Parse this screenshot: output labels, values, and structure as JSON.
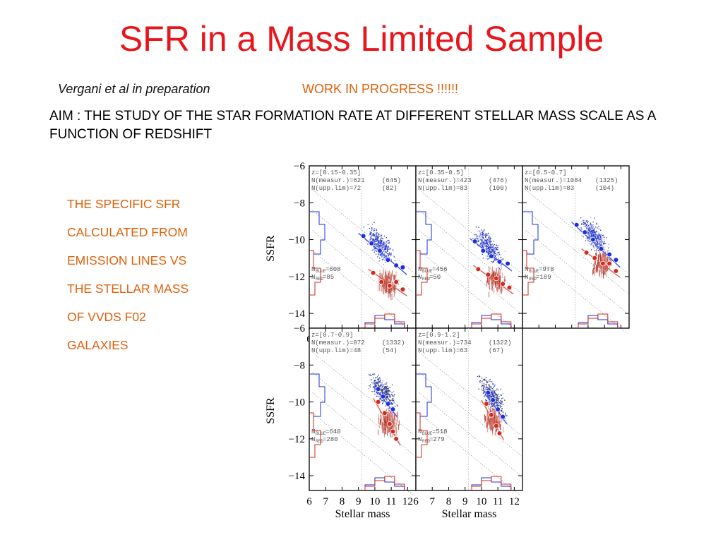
{
  "slide": {
    "title": "SFR in a Mass Limited Sample",
    "citation": "Vergani et al in preparation",
    "status": "WORK IN PROGRESS !!!!!!",
    "aim": "AIM : THE STUDY OF THE STAR FORMATION RATE AT DIFFERENT STELLAR MASS SCALE AS  A FUNCTION OF REDSHIFT",
    "description_lines": [
      "THE SPECIFIC SFR",
      "CALCULATED FROM",
      "EMISSION LINES VS",
      "THE STELLAR MASS",
      "OF VVDS F02",
      "GALAXIES"
    ]
  },
  "colors": {
    "title": "#e8161c",
    "highlight": "#e0610b",
    "blue": "#1a2fe0",
    "red": "#d42a1e"
  },
  "chart_data": [
    {
      "type": "scatter",
      "title": "z=[0.15-0.35]",
      "n_measured": "N(measur.)=621",
      "n_measured_total": "(645)",
      "n_upper_limits": "N(upp.lim)=72",
      "n_upper_limits_total": "(82)",
      "n_blue": "608",
      "n_red": "85",
      "xlabel": "",
      "ylabel": "SSFR",
      "xlim": [
        6,
        12.5
      ],
      "ylim": [
        -14.8,
        -6
      ],
      "xticks": [
        "6",
        "7",
        "8",
        "9",
        "10",
        "11",
        "12"
      ],
      "yticks": [
        "-6",
        "-8",
        "-10",
        "-12",
        "-14"
      ],
      "series": [
        {
          "name": "BLUE",
          "x": [
            9.3,
            9.8,
            10.3,
            10.8,
            11.3,
            11.7
          ],
          "y": [
            -9.8,
            -10.2,
            -10.6,
            -11.1,
            -11.4,
            -11.5
          ]
        },
        {
          "name": "RED",
          "x": [
            9.9,
            10.4,
            10.9,
            11.3,
            11.7
          ],
          "y": [
            -11.8,
            -12.3,
            -12.5,
            -12.3,
            -12.7
          ]
        }
      ]
    },
    {
      "type": "scatter",
      "title": "z=[0.35-0.5]",
      "n_measured": "N(measur.)=423",
      "n_measured_total": "(476)",
      "n_upper_limits": "N(upp.lim)=83",
      "n_upper_limits_total": "(100)",
      "n_blue": "456",
      "n_red": "50",
      "xlabel": "",
      "ylabel": "",
      "xlim": [
        6,
        12.5
      ],
      "ylim": [
        -14.8,
        -6
      ],
      "series": [
        {
          "name": "BLUE",
          "x": [
            9.6,
            10.1,
            10.6,
            11.1,
            11.6
          ],
          "y": [
            -10.1,
            -10.6,
            -10.9,
            -11.2,
            -11.3
          ]
        },
        {
          "name": "RED",
          "x": [
            9.8,
            10.4,
            10.9,
            11.3,
            11.7
          ],
          "y": [
            -11.6,
            -11.9,
            -12.1,
            -12.4,
            -12.6
          ]
        }
      ]
    },
    {
      "type": "scatter",
      "title": "z=[0.5-0.7]",
      "n_measured": "N(measur.)=1084",
      "n_measured_total": "(1325)",
      "n_upper_limits": "N(upp.lim)=83",
      "n_upper_limits_total": "(104)",
      "n_blue": "978",
      "n_red": "189",
      "xlabel": "",
      "ylabel": "",
      "xlim": [
        6,
        12.5
      ],
      "ylim": [
        -14.8,
        -6
      ],
      "series": [
        {
          "name": "BLUE",
          "x": [
            9.3,
            9.8,
            10.3,
            10.8,
            11.3,
            11.7
          ],
          "y": [
            -9.2,
            -9.6,
            -10.0,
            -10.5,
            -10.8,
            -11.1
          ]
        },
        {
          "name": "RED",
          "x": [
            9.9,
            10.4,
            10.9,
            11.3,
            11.7
          ],
          "y": [
            -10.7,
            -11.0,
            -11.3,
            -11.3,
            -11.7
          ]
        }
      ]
    },
    {
      "type": "scatter",
      "title": "z=[0.7-0.9]",
      "n_measured": "N(measur.)=872",
      "n_measured_total": "(1332)",
      "n_upper_limits": "N(upp.lim)=48",
      "n_upper_limits_total": "(54)",
      "n_blue": "640",
      "n_red": "280",
      "xlabel": "Stellar mass",
      "ylabel": "SSFR",
      "xlim": [
        6,
        12.5
      ],
      "ylim": [
        -14.8,
        -6
      ],
      "xticks": [
        "6",
        "7",
        "8",
        "9",
        "10",
        "11",
        "12"
      ],
      "yticks": [
        "-6",
        "-8",
        "-10",
        "-12",
        "-14"
      ],
      "series": [
        {
          "name": "BLUE",
          "x": [
            10.2,
            10.5,
            10.8,
            11.1
          ],
          "y": [
            -9.3,
            -9.7,
            -10.1,
            -10.4
          ]
        },
        {
          "name": "RED",
          "x": [
            10.2,
            10.6,
            10.9,
            11.1,
            11.3
          ],
          "y": [
            -10.0,
            -10.6,
            -11.2,
            -11.6,
            -12.0
          ]
        }
      ]
    },
    {
      "type": "scatter",
      "title": "z=[0.9-1.2]",
      "n_measured": "N(measur.)=734",
      "n_measured_total": "(1322)",
      "n_upper_limits": "N(upp.lim)=63",
      "n_upper_limits_total": "(67)",
      "n_blue": "518",
      "n_red": "279",
      "xlabel": "Stellar mass",
      "ylabel": "",
      "xlim": [
        6,
        12.5
      ],
      "ylim": [
        -14.8,
        -6
      ],
      "xticks": [
        "6",
        "7",
        "8",
        "9",
        "10",
        "11",
        "12"
      ],
      "series": [
        {
          "name": "BLUE",
          "x": [
            10.4,
            10.7,
            11.0,
            11.3
          ],
          "y": [
            -9.5,
            -9.9,
            -10.4,
            -10.8
          ]
        },
        {
          "name": "RED",
          "x": [
            10.3,
            10.6,
            10.9,
            11.1
          ],
          "y": [
            -10.1,
            -10.7,
            -11.3,
            -11.7
          ]
        }
      ]
    }
  ]
}
